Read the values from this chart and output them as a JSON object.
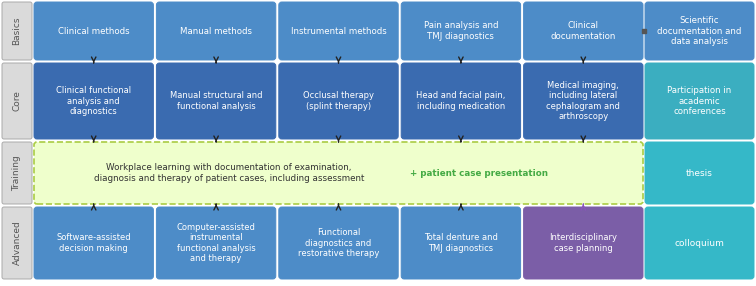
{
  "blue_basics": "#4D8CC8",
  "blue_core": "#3A6BB0",
  "teal_core_right": "#3BAEC0",
  "teal_thesis": "#35B8C8",
  "teal_colloquium": "#35B8C8",
  "purple_adv": "#7B5EA7",
  "green_fill": "#EFFFCC",
  "green_border": "#AACC44",
  "gray_label_fill": "#DADADA",
  "gray_label_edge": "#AAAAAA",
  "white": "#FFFFFF",
  "arrow_color": "#222222",
  "purple_arrow": "#8855BB",
  "green_text": "#44AA44",
  "dark_text": "#222222",
  "basics_boxes": [
    "Clinical methods",
    "Manual methods",
    "Instrumental methods",
    "Pain analysis and\nTMJ diagnostics",
    "Clinical\ndocumentation"
  ],
  "core_boxes": [
    "Clinical functional\nanalysis and\ndiagnostics",
    "Manual structural and\nfunctional analysis",
    "Occlusal therapy\n(splint therapy)",
    "Head and facial pain,\nincluding medication",
    "Medical imaging,\nincluding lateral\ncephalogram and\narthroscopy"
  ],
  "advanced_boxes": [
    "Software-assisted\ndecision making",
    "Computer-assisted\ninstrumental\nfunctional analysis\nand therapy",
    "Functional\ndiagnostics and\nrestorative therapy",
    "Total denture and\nTMJ diagnostics",
    "Interdisciplinary\ncase planning"
  ],
  "training_text": "Workplace learning with documentation of examination,\ndiagnosis and therapy of patient cases, including assessment",
  "training_extra": "+ patient case presentation",
  "right_basics": "Scientific\ndocumentation and\ndata analysis",
  "right_core": "Participation in\nacademic\nconferences",
  "right_thesis": "thesis",
  "right_colloquium": "colloquium",
  "row_labels": [
    "Basics",
    "Core",
    "Training",
    "Advanced"
  ]
}
